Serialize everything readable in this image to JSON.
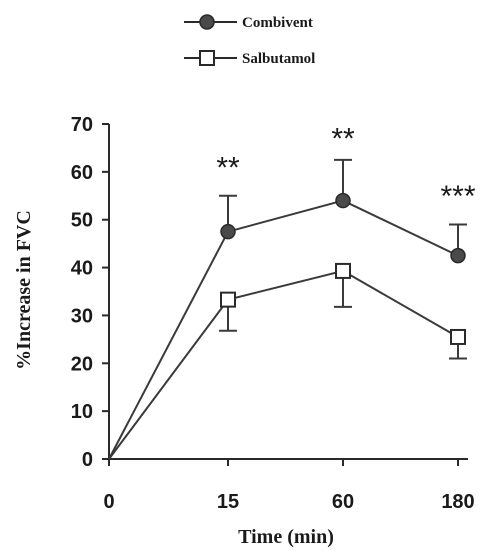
{
  "chart_data": {
    "type": "line",
    "x_categories": [
      "0",
      "15",
      "60",
      "180"
    ],
    "xlabel": "Time (min)",
    "ylabel": "%Increase in FVC",
    "ylim": [
      0,
      70
    ],
    "yticks": [
      "0",
      "10",
      "20",
      "30",
      "40",
      "50",
      "60",
      "70"
    ],
    "grid": false,
    "legend_position": "top-center",
    "series": [
      {
        "name": "Combivent",
        "marker": "filled-circle",
        "color": "#3a3a3a",
        "values": [
          0,
          47.5,
          54,
          42.5
        ],
        "error_upper": [
          0,
          7.5,
          8.5,
          6.5
        ],
        "error_direction": "up"
      },
      {
        "name": "Salbutamol",
        "marker": "open-square",
        "color": "#3a3a3a",
        "values": [
          0,
          33.3,
          39.3,
          25.5
        ],
        "error_lower": [
          0,
          6.5,
          7.5,
          4.5
        ],
        "error_direction": "down"
      }
    ],
    "annotations": [
      {
        "x": "15",
        "text": "**",
        "y": 62
      },
      {
        "x": "60",
        "text": "**",
        "y": 68
      },
      {
        "x": "180",
        "text": "***",
        "y": 56
      }
    ]
  }
}
